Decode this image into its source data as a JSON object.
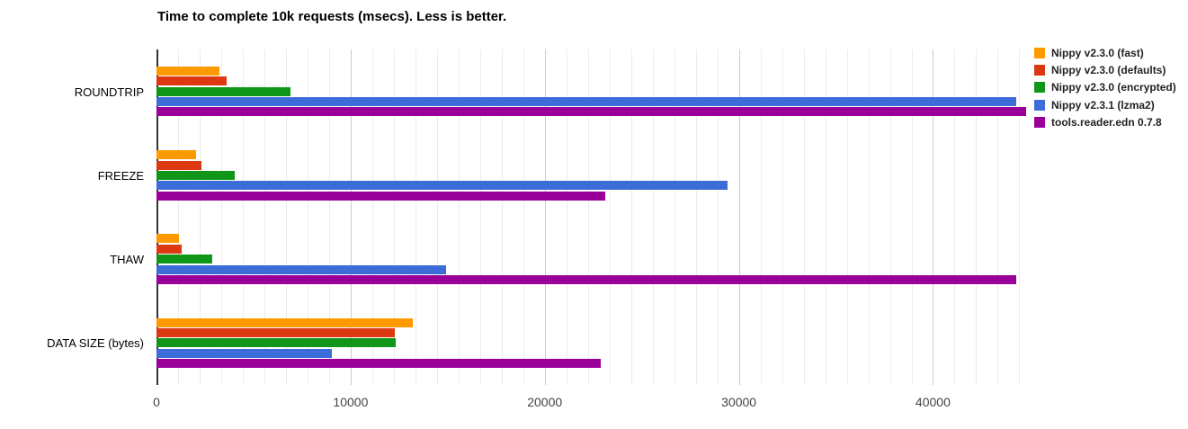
{
  "chart_data": {
    "type": "bar",
    "orientation": "horizontal",
    "title": "Time to complete 10k requests (msecs). Less is better.",
    "categories": [
      "ROUNDTRIP",
      "FREEZE",
      "THAW",
      "DATA SIZE (bytes)"
    ],
    "series": [
      {
        "name": "Nippy v2.3.0 (fast)",
        "color": "#FF9900",
        "values": [
          3260,
          2050,
          1150,
          13200
        ]
      },
      {
        "name": "Nippy v2.3.0 (defaults)",
        "color": "#DC3912",
        "values": [
          3600,
          2320,
          1300,
          12270
        ]
      },
      {
        "name": "Nippy v2.3.0 (encrypted)",
        "color": "#109618",
        "values": [
          6890,
          4030,
          2870,
          12330
        ]
      },
      {
        "name": "Nippy v2.3.1 (lzma2)",
        "color": "#3C6CD7",
        "values": [
          44300,
          29400,
          14900,
          9020
        ]
      },
      {
        "name": "tools.reader.edn 0.7.8",
        "color": "#990099",
        "values": [
          44800,
          23100,
          44300,
          22870
        ]
      }
    ],
    "x_axis": {
      "ticks": [
        0,
        10000,
        20000,
        30000,
        40000
      ],
      "tick_labels": [
        "0",
        "10000",
        "20000",
        "30000",
        "40000"
      ],
      "max": 45400,
      "minor_divisions_per_major": 9
    },
    "ylabel": "",
    "xlabel": "",
    "grid": true,
    "legend_position": "right",
    "colors": {
      "axis_line": "#333333",
      "major_grid": "#cccccc",
      "minor_grid": "#ececec",
      "tick_text": "#444444",
      "category_text": "#000000",
      "title_text": "#000000"
    }
  }
}
